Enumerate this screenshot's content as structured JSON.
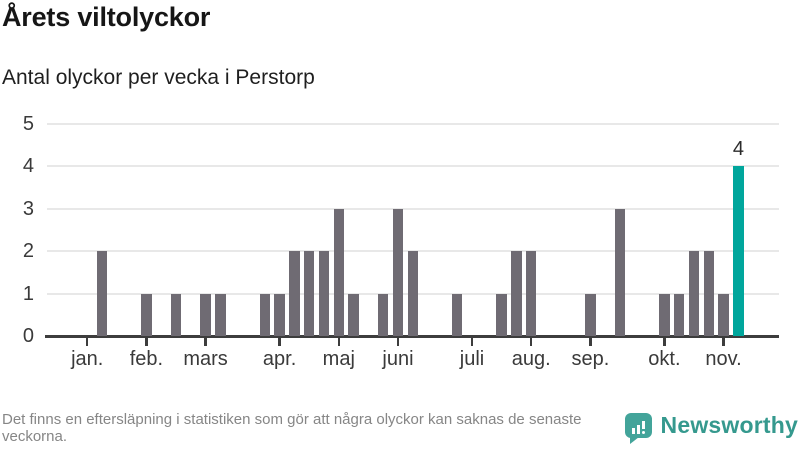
{
  "header": {
    "title": "Årets viltolyckor",
    "subtitle": "Antal olyckor per vecka i Perstorp"
  },
  "chart_data": {
    "type": "bar",
    "title": "Årets viltolyckor",
    "subtitle": "Antal olyckor per vecka i Perstorp",
    "xlabel": "",
    "ylabel": "",
    "x_unit": "vecka (ISO week)",
    "first_week": 1,
    "values": [
      0,
      2,
      0,
      0,
      1,
      0,
      1,
      0,
      1,
      1,
      0,
      0,
      1,
      1,
      2,
      2,
      2,
      3,
      1,
      0,
      1,
      3,
      2,
      0,
      0,
      1,
      0,
      0,
      1,
      2,
      2,
      0,
      0,
      0,
      1,
      0,
      3,
      0,
      0,
      1,
      1,
      2,
      2,
      1,
      4
    ],
    "ylim": [
      0,
      5
    ],
    "yticks": [
      0,
      1,
      2,
      3,
      4,
      5
    ],
    "grid": "horizontal",
    "legend": "none",
    "month_ticks": [
      {
        "label": "jan.",
        "week": 1
      },
      {
        "label": "feb.",
        "week": 5
      },
      {
        "label": "mars",
        "week": 9
      },
      {
        "label": "apr.",
        "week": 14
      },
      {
        "label": "maj",
        "week": 18
      },
      {
        "label": "juni",
        "week": 22
      },
      {
        "label": "juli",
        "week": 27
      },
      {
        "label": "aug.",
        "week": 31
      },
      {
        "label": "sep.",
        "week": 35
      },
      {
        "label": "okt.",
        "week": 40
      },
      {
        "label": "nov.",
        "week": 44
      }
    ],
    "highlight": {
      "week": 45,
      "value": 4,
      "label": "4"
    },
    "colors": {
      "bar": "#6f6b73",
      "highlight": "#00a69c",
      "gridline": "#e8e8e8",
      "axis": "#3d3d3d",
      "tick_label": "#3a3a3a"
    }
  },
  "footer": {
    "note": "Det finns en eftersläpning i statistiken som gör att några olyckor kan saknas de senaste veckorna."
  },
  "logo": {
    "text": "Newsworthy",
    "color": "#35998e",
    "icon": "newsworthy-bar-chart-speech-bubble-icon"
  }
}
